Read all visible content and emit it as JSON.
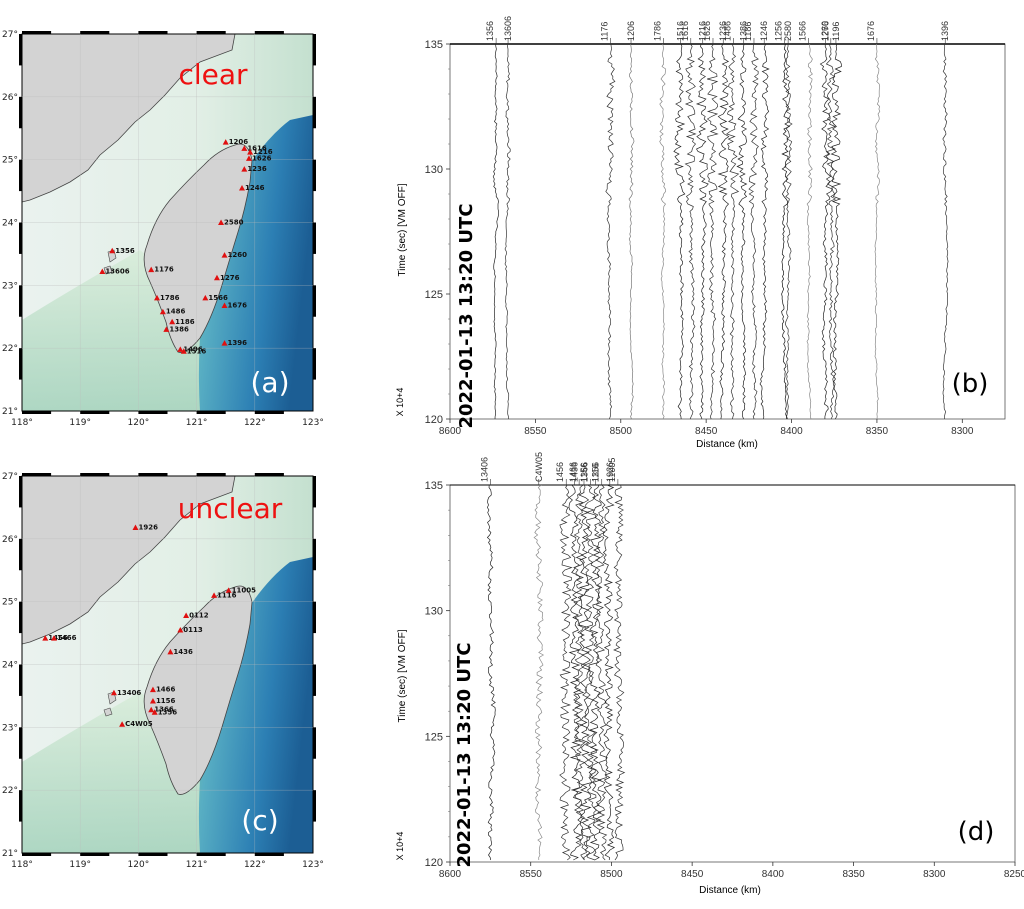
{
  "panel_a": {
    "status": "clear",
    "tag": "(a)",
    "lon_ticks": [
      "118°",
      "119°",
      "120°",
      "121°",
      "122°",
      "123°"
    ],
    "lat_ticks": [
      "27°",
      "26°",
      "25°",
      "24°",
      "23°",
      "22°",
      "21°"
    ],
    "stations": [
      {
        "label": "1206",
        "lon": 121.5,
        "lat": 25.28
      },
      {
        "label": "1616",
        "lon": 121.82,
        "lat": 25.18
      },
      {
        "label": "1216",
        "lon": 121.92,
        "lat": 25.12
      },
      {
        "label": "1626",
        "lon": 121.9,
        "lat": 25.02
      },
      {
        "label": "1236",
        "lon": 121.82,
        "lat": 24.85
      },
      {
        "label": "1246",
        "lon": 121.78,
        "lat": 24.55
      },
      {
        "label": "1356",
        "lon": 119.55,
        "lat": 23.55
      },
      {
        "label": "13606",
        "lon": 119.38,
        "lat": 23.22
      },
      {
        "label": "1176",
        "lon": 120.22,
        "lat": 23.25
      },
      {
        "label": "2580",
        "lon": 121.42,
        "lat": 24.0
      },
      {
        "label": "1260",
        "lon": 121.48,
        "lat": 23.48
      },
      {
        "label": "1276",
        "lon": 121.35,
        "lat": 23.12
      },
      {
        "label": "1786",
        "lon": 120.32,
        "lat": 22.8
      },
      {
        "label": "1486",
        "lon": 120.42,
        "lat": 22.58
      },
      {
        "label": "1566",
        "lon": 121.15,
        "lat": 22.8
      },
      {
        "label": "1676",
        "lon": 121.48,
        "lat": 22.68
      },
      {
        "label": "1186",
        "lon": 120.58,
        "lat": 22.42
      },
      {
        "label": "1386",
        "lon": 120.48,
        "lat": 22.3
      },
      {
        "label": "1396",
        "lon": 121.48,
        "lat": 22.08
      },
      {
        "label": "1496",
        "lon": 120.72,
        "lat": 21.98
      },
      {
        "label": "1516",
        "lon": 120.78,
        "lat": 21.95
      }
    ]
  },
  "panel_c": {
    "status": "unclear",
    "tag": "(c)",
    "lon_ticks": [
      "118°",
      "119°",
      "120°",
      "121°",
      "122°",
      "123°"
    ],
    "lat_ticks": [
      "27°",
      "26°",
      "25°",
      "24°",
      "23°",
      "22°",
      "21°"
    ],
    "stations": [
      {
        "label": "1926",
        "lon": 119.95,
        "lat": 26.18
      },
      {
        "label": "11005",
        "lon": 121.55,
        "lat": 25.18
      },
      {
        "label": "1116",
        "lon": 121.3,
        "lat": 25.1
      },
      {
        "label": "0112",
        "lon": 120.82,
        "lat": 24.78
      },
      {
        "label": "0113",
        "lon": 120.72,
        "lat": 24.55
      },
      {
        "label": "1456",
        "lon": 118.4,
        "lat": 24.42
      },
      {
        "label": "1466",
        "lon": 118.55,
        "lat": 24.42
      },
      {
        "label": "1436",
        "lon": 120.55,
        "lat": 24.2
      },
      {
        "label": "13406",
        "lon": 119.58,
        "lat": 23.55
      },
      {
        "label": "1466",
        "lon": 120.25,
        "lat": 23.6
      },
      {
        "label": "1156",
        "lon": 120.25,
        "lat": 23.42
      },
      {
        "label": "1366",
        "lon": 120.22,
        "lat": 23.28
      },
      {
        "label": "1356",
        "lon": 120.28,
        "lat": 23.24
      },
      {
        "label": "C4W05",
        "lon": 119.72,
        "lat": 23.05
      }
    ]
  },
  "panel_b": {
    "tag": "(b)",
    "date_label": "2022-01-13 13:20 UTC",
    "ylabel": "Time (sec)   [VM OFF]",
    "xlabel": "Distance (km)",
    "scale_note": "X 10+4",
    "y_ticks": [
      "135",
      "130",
      "125",
      "120"
    ],
    "x_ticks": [
      "8600",
      "8550",
      "8500",
      "8450",
      "8400",
      "8350",
      "8300"
    ],
    "traces": [
      {
        "label": "1356",
        "distance": 8573,
        "amp": 2.5,
        "shade": "#222"
      },
      {
        "label": "13606",
        "distance": 8566,
        "amp": 3,
        "shade": "#333"
      },
      {
        "label": "1176",
        "distance": 8506,
        "amp": 7,
        "shade": "#333"
      },
      {
        "label": "1206",
        "distance": 8494,
        "amp": 3,
        "shade": "#777"
      },
      {
        "label": "1786",
        "distance": 8475,
        "amp": 4,
        "shade": "#888"
      },
      {
        "label": "1516",
        "distance": 8465,
        "amp": 9,
        "shade": "#222"
      },
      {
        "label": "1616",
        "distance": 8459,
        "amp": 10,
        "shade": "#333"
      },
      {
        "label": "1216",
        "distance": 8452,
        "amp": 10,
        "shade": "#222"
      },
      {
        "label": "1626",
        "distance": 8446,
        "amp": 10,
        "shade": "#333"
      },
      {
        "label": "1236",
        "distance": 8440,
        "amp": 10,
        "shade": "#222"
      },
      {
        "label": "1486",
        "distance": 8434,
        "amp": 9,
        "shade": "#333"
      },
      {
        "label": "1386",
        "distance": 8428,
        "amp": 8,
        "shade": "#222"
      },
      {
        "label": "1186",
        "distance": 8422,
        "amp": 8,
        "shade": "#333"
      },
      {
        "label": "1246",
        "distance": 8416,
        "amp": 7,
        "shade": "#222"
      },
      {
        "label": "1256",
        "distance": 8404,
        "amp": 6,
        "shade": "#111"
      },
      {
        "label": "2580",
        "distance": 8402,
        "amp": 6,
        "shade": "#333"
      },
      {
        "label": "1566",
        "distance": 8390,
        "amp": 4,
        "shade": "#888"
      },
      {
        "label": "1276",
        "distance": 8380,
        "amp": 9,
        "shade": "#222"
      },
      {
        "label": "1260",
        "distance": 8377,
        "amp": 9,
        "shade": "#333"
      },
      {
        "label": "1196",
        "distance": 8374,
        "amp": 9,
        "shade": "#222"
      },
      {
        "label": "1676",
        "distance": 8350,
        "amp": 3,
        "shade": "#888"
      },
      {
        "label": "1396",
        "distance": 8310,
        "amp": 3,
        "shade": "#333"
      }
    ]
  },
  "panel_d": {
    "tag": "(d)",
    "date_label": "2022-01-13 13:20 UTC",
    "ylabel": "Time (sec)   [VM OFF]",
    "xlabel": "Distance (km)",
    "scale_note": "X 10+4",
    "y_ticks": [
      "135",
      "130",
      "125",
      "120"
    ],
    "x_ticks": [
      "8600",
      "8550",
      "8500",
      "8450",
      "8400",
      "8350",
      "8300",
      "8250"
    ],
    "traces": [
      {
        "label": "13406",
        "distance": 8575,
        "amp": 4,
        "shade": "#222"
      },
      {
        "label": "C4W05",
        "distance": 8545,
        "amp": 6,
        "shade": "#888"
      },
      {
        "label": "1456",
        "distance": 8528,
        "amp": 10,
        "shade": "#333"
      },
      {
        "label": "1436",
        "distance": 8523,
        "amp": 10,
        "shade": "#222"
      },
      {
        "label": "1466",
        "distance": 8520,
        "amp": 10,
        "shade": "#333"
      },
      {
        "label": "1156",
        "distance": 8517,
        "amp": 10,
        "shade": "#222"
      },
      {
        "label": "1366",
        "distance": 8513,
        "amp": 10,
        "shade": "#333"
      },
      {
        "label": "1356",
        "distance": 8510,
        "amp": 10,
        "shade": "#222"
      },
      {
        "label": "1116",
        "distance": 8506,
        "amp": 9,
        "shade": "#333"
      },
      {
        "label": "1926",
        "distance": 8501,
        "amp": 9,
        "shade": "#222"
      },
      {
        "label": "11005",
        "distance": 8496,
        "amp": 8,
        "shade": "#333"
      }
    ]
  },
  "colors": {
    "status_red": "#ee1111",
    "station_marker": "#e01010",
    "land": "#d3d3d3",
    "sea_light": "#f1f5f4"
  }
}
